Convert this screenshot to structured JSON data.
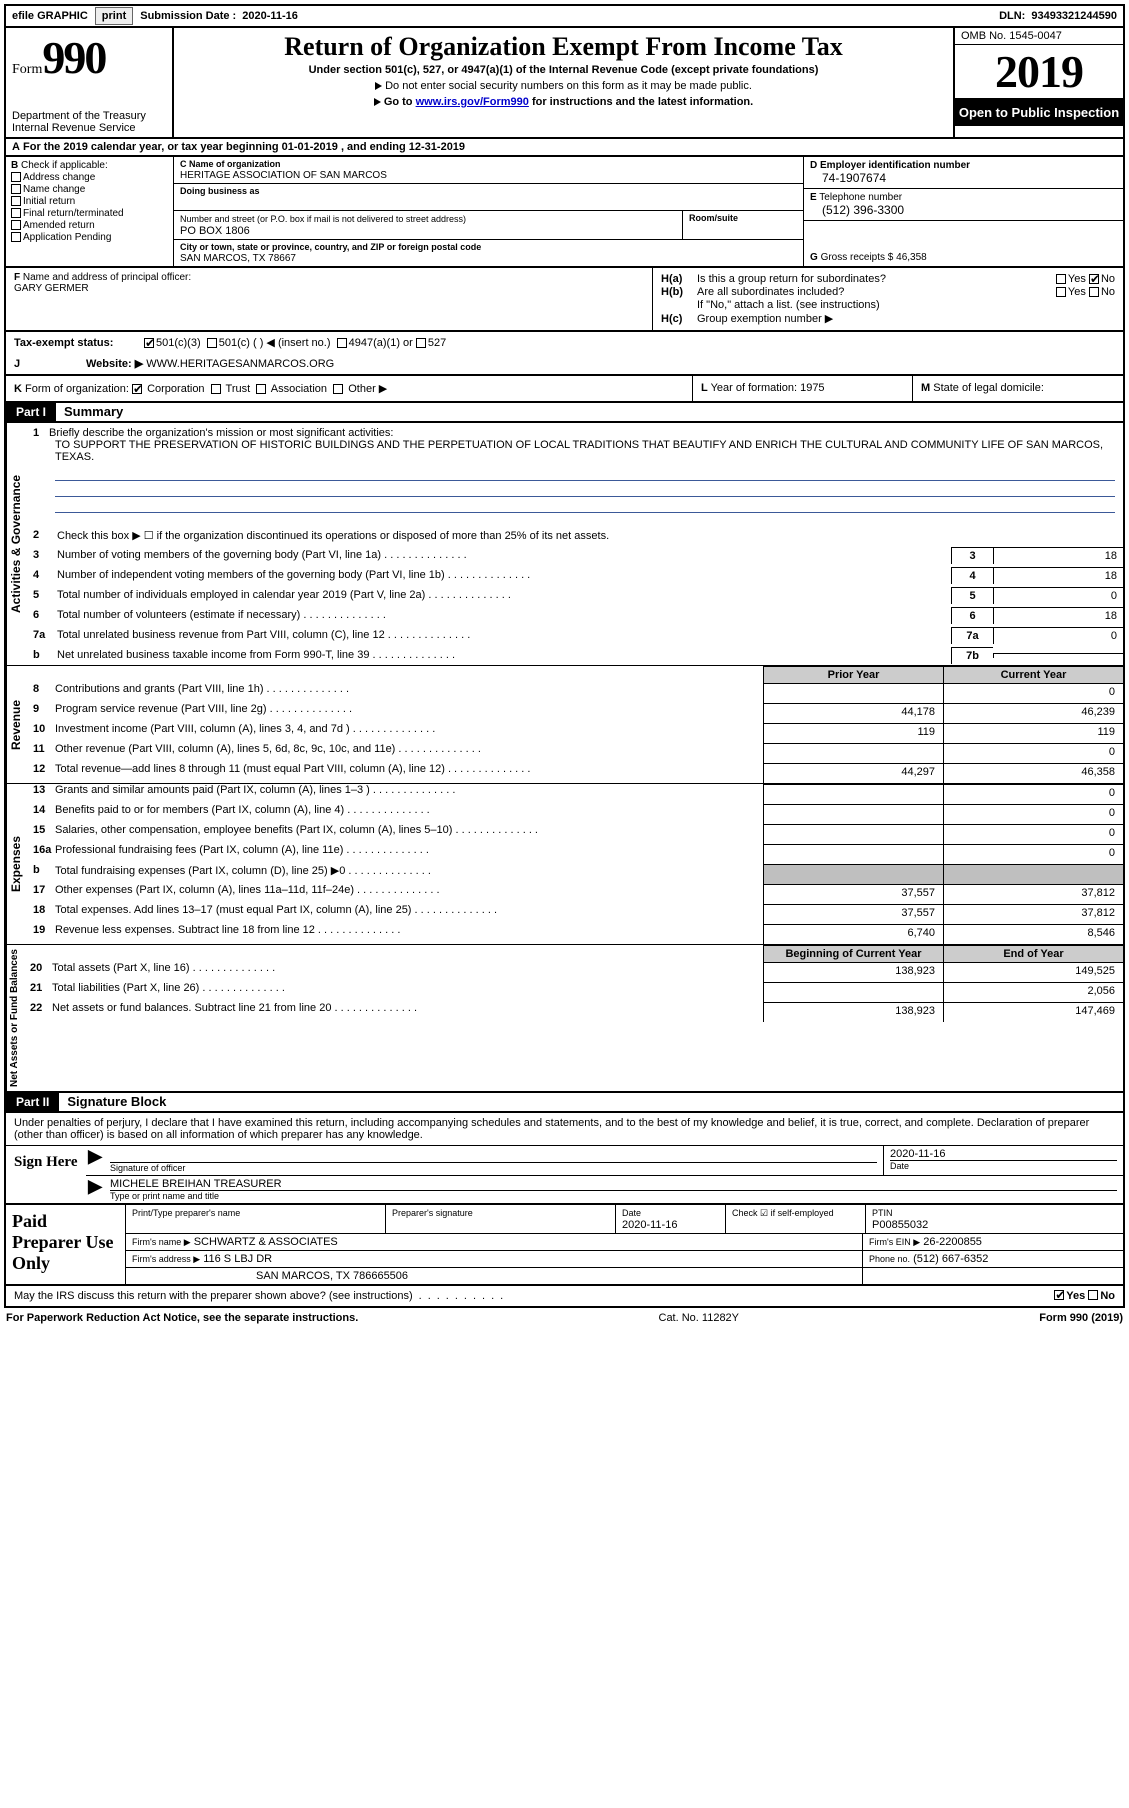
{
  "topbar": {
    "efile_label": "efile GRAPHIC",
    "print_btn": "print",
    "subdate_label": "Submission Date :",
    "subdate": "2020-11-16",
    "dln_label": "DLN:",
    "dln": "93493321244590"
  },
  "header": {
    "form_label": "Form",
    "form_num": "990",
    "dept": "Department of the Treasury\nInternal Revenue Service",
    "title": "Return of Organization Exempt From Income Tax",
    "sub1": "Under section 501(c), 527, or 4947(a)(1) of the Internal Revenue Code (except private foundations)",
    "sub2": "Do not enter social security numbers on this form as it may be made public.",
    "sub3_pre": "Go to ",
    "sub3_link": "www.irs.gov/Form990",
    "sub3_post": " for instructions and the latest information.",
    "omb": "OMB No. 1545-0047",
    "year": "2019",
    "open": "Open to Public Inspection"
  },
  "cal": {
    "text": "For the 2019 calendar year, or tax year beginning 01-01-2019    , and ending 12-31-2019"
  },
  "B": {
    "label": "Check if applicable:",
    "items": [
      "Address change",
      "Name change",
      "Initial return",
      "Final return/terminated",
      "Amended return",
      "Application Pending"
    ]
  },
  "C": {
    "name_lab": "Name of organization",
    "name": "HERITAGE ASSOCIATION OF SAN MARCOS",
    "dba_lab": "Doing business as",
    "dba": "",
    "addr_lab": "Number and street (or P.O. box if mail is not delivered to street address)",
    "suite_lab": "Room/suite",
    "addr": "PO BOX 1806",
    "city_lab": "City or town, state or province, country, and ZIP or foreign postal code",
    "city": "SAN MARCOS, TX   78667"
  },
  "D": {
    "lab": "Employer identification number",
    "val": "74-1907674"
  },
  "E": {
    "lab": "Telephone number",
    "val": "(512) 396-3300"
  },
  "G": {
    "lab": "Gross receipts $",
    "val": "46,358"
  },
  "F": {
    "lab": "Name and address of principal officer:",
    "val": "GARY GERMER"
  },
  "H": {
    "a": "Is this a group return for subordinates?",
    "b": "Are all subordinates included?",
    "b2": "If \"No,\" attach a list. (see instructions)",
    "c": "Group exemption number ▶",
    "a_yes": false,
    "a_no": true
  },
  "tax": {
    "lab": "Tax-exempt status:",
    "c3": "501(c)(3)",
    "c": "501(c) (   ) ◀ (insert no.)",
    "a1": "4947(a)(1) or",
    "s527": "527"
  },
  "J": {
    "lab": "Website: ▶",
    "val": "WWW.HERITAGESANMARCOS.ORG"
  },
  "K": {
    "lab": "Form of organization:",
    "opts": [
      "Corporation",
      "Trust",
      "Association",
      "Other ▶"
    ]
  },
  "L": {
    "lab": "Year of formation:",
    "val": "1975"
  },
  "M": {
    "lab": "State of legal domicile:",
    "val": ""
  },
  "part1": {
    "hdr": "Part I",
    "title": "Summary",
    "mission_lab": "Briefly describe the organization's mission or most significant activities:",
    "mission": "TO SUPPORT THE PRESERVATION OF HISTORIC BUILDINGS AND THE PERPETUATION OF LOCAL TRADITIONS THAT BEAUTIFY AND ENRICH THE CULTURAL AND COMMUNITY LIFE OF SAN MARCOS, TEXAS.",
    "line2": "Check this box ▶ ☐ if the organization discontinued its operations or disposed of more than 25% of its net assets.",
    "side_ag": "Activities & Governance",
    "side_rev": "Revenue",
    "side_exp": "Expenses",
    "side_na": "Net Assets or Fund Balances",
    "rows_ag": [
      {
        "n": "3",
        "t": "Number of voting members of the governing body (Part VI, line 1a)",
        "box": "3",
        "v": "18"
      },
      {
        "n": "4",
        "t": "Number of independent voting members of the governing body (Part VI, line 1b)",
        "box": "4",
        "v": "18"
      },
      {
        "n": "5",
        "t": "Total number of individuals employed in calendar year 2019 (Part V, line 2a)",
        "box": "5",
        "v": "0"
      },
      {
        "n": "6",
        "t": "Total number of volunteers (estimate if necessary)",
        "box": "6",
        "v": "18"
      },
      {
        "n": "7a",
        "t": "Total unrelated business revenue from Part VIII, column (C), line 12",
        "box": "7a",
        "v": "0"
      },
      {
        "n": "b",
        "t": "Net unrelated business taxable income from Form 990-T, line 39",
        "box": "7b",
        "v": ""
      }
    ],
    "col_prior": "Prior Year",
    "col_curr": "Current Year",
    "rows_rev": [
      {
        "n": "8",
        "t": "Contributions and grants (Part VIII, line 1h)",
        "p": "",
        "c": "0"
      },
      {
        "n": "9",
        "t": "Program service revenue (Part VIII, line 2g)",
        "p": "44,178",
        "c": "46,239"
      },
      {
        "n": "10",
        "t": "Investment income (Part VIII, column (A), lines 3, 4, and 7d )",
        "p": "119",
        "c": "119"
      },
      {
        "n": "11",
        "t": "Other revenue (Part VIII, column (A), lines 5, 6d, 8c, 9c, 10c, and 11e)",
        "p": "",
        "c": "0"
      },
      {
        "n": "12",
        "t": "Total revenue—add lines 8 through 11 (must equal Part VIII, column (A), line 12)",
        "p": "44,297",
        "c": "46,358"
      }
    ],
    "rows_exp": [
      {
        "n": "13",
        "t": "Grants and similar amounts paid (Part IX, column (A), lines 1–3 )",
        "p": "",
        "c": "0"
      },
      {
        "n": "14",
        "t": "Benefits paid to or for members (Part IX, column (A), line 4)",
        "p": "",
        "c": "0"
      },
      {
        "n": "15",
        "t": "Salaries, other compensation, employee benefits (Part IX, column (A), lines 5–10)",
        "p": "",
        "c": "0"
      },
      {
        "n": "16a",
        "t": "Professional fundraising fees (Part IX, column (A), line 11e)",
        "p": "",
        "c": "0"
      },
      {
        "n": "b",
        "t": "Total fundraising expenses (Part IX, column (D), line 25) ▶0",
        "p": "SHADE",
        "c": "SHADE"
      },
      {
        "n": "17",
        "t": "Other expenses (Part IX, column (A), lines 11a–11d, 11f–24e)",
        "p": "37,557",
        "c": "37,812"
      },
      {
        "n": "18",
        "t": "Total expenses. Add lines 13–17 (must equal Part IX, column (A), line 25)",
        "p": "37,557",
        "c": "37,812"
      },
      {
        "n": "19",
        "t": "Revenue less expenses. Subtract line 18 from line 12",
        "p": "6,740",
        "c": "8,546"
      }
    ],
    "col_beg": "Beginning of Current Year",
    "col_end": "End of Year",
    "rows_na": [
      {
        "n": "20",
        "t": "Total assets (Part X, line 16)",
        "p": "138,923",
        "c": "149,525"
      },
      {
        "n": "21",
        "t": "Total liabilities (Part X, line 26)",
        "p": "",
        "c": "2,056"
      },
      {
        "n": "22",
        "t": "Net assets or fund balances. Subtract line 21 from line 20",
        "p": "138,923",
        "c": "147,469"
      }
    ]
  },
  "part2": {
    "hdr": "Part II",
    "title": "Signature Block",
    "decl": "Under penalties of perjury, I declare that I have examined this return, including accompanying schedules and statements, and to the best of my knowledge and belief, it is true, correct, and complete. Declaration of preparer (other than officer) is based on all information of which preparer has any knowledge.",
    "sign_here": "Sign Here",
    "sig_lab": "Signature of officer",
    "date_lab": "Date",
    "date": "2020-11-16",
    "name": "MICHELE BREIHAN  TREASURER",
    "name_lab": "Type or print name and title"
  },
  "prep": {
    "lab": "Paid Preparer Use Only",
    "r1": {
      "c1": "Print/Type preparer's name",
      "c2": "Preparer's signature",
      "c3": "Date",
      "c3v": "2020-11-16",
      "c4": "Check ☑ if self-employed",
      "c5": "PTIN",
      "c5v": "P00855032"
    },
    "r2": {
      "c1": "Firm's name    ▶",
      "c1v": "SCHWARTZ & ASSOCIATES",
      "c2": "Firm's EIN ▶",
      "c2v": "26-2200855"
    },
    "r3": {
      "c1": "Firm's address ▶",
      "c1v": "116 S LBJ DR",
      "c2": "Phone no.",
      "c2v": "(512) 667-6352"
    },
    "r4": {
      "c1": "SAN MARCOS, TX  786665506"
    }
  },
  "discuss": {
    "q": "May the IRS discuss this return with the preparer shown above? (see instructions)",
    "yes": "Yes",
    "no": "No"
  },
  "footer": {
    "left": "For Paperwork Reduction Act Notice, see the separate instructions.",
    "mid": "Cat. No. 11282Y",
    "right": "Form 990 (2019)"
  },
  "colors": {
    "link": "#0000cc",
    "shade": "#bfbfbf",
    "black": "#000000",
    "ruleline": "#3b5998"
  }
}
